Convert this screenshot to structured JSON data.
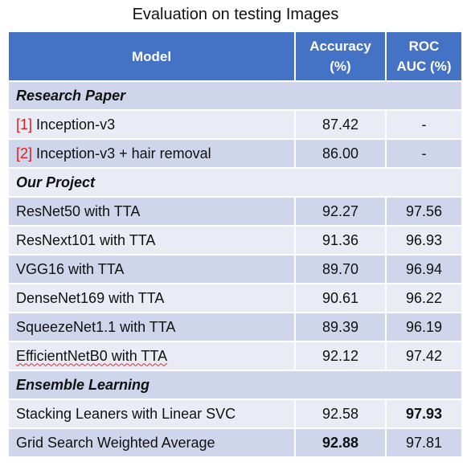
{
  "title": "Evaluation on testing Images",
  "headers": {
    "model": "Model",
    "accuracy_line1": "Accuracy",
    "accuracy_line2": "(%)",
    "roc_line1": "ROC",
    "roc_line2": "AUC (%)"
  },
  "sections": {
    "research": "Research Paper",
    "project": "Our Project",
    "ensemble": "Ensemble Learning"
  },
  "paper_rows": [
    {
      "ref": "[1]",
      "model": " Inception-v3",
      "accuracy": "87.42",
      "roc": "-"
    },
    {
      "ref": "[2]",
      "model": " Inception-v3 + hair removal",
      "accuracy": "86.00",
      "roc": "-"
    }
  ],
  "project_rows": [
    {
      "model": "ResNet50 with TTA",
      "accuracy": "92.27",
      "roc": "97.56"
    },
    {
      "model": "ResNext101 with TTA",
      "accuracy": "91.36",
      "roc": "96.93"
    },
    {
      "model": "VGG16 with TTA",
      "accuracy": "89.70",
      "roc": "96.94"
    },
    {
      "model": "DenseNet169 with TTA",
      "accuracy": "90.61",
      "roc": "96.22"
    },
    {
      "model": "SqueezeNet1.1 with TTA",
      "accuracy": "89.39",
      "roc": "96.19"
    },
    {
      "model": "EfficientNetB0 with TTA",
      "accuracy": "92.12",
      "roc": "97.42"
    }
  ],
  "ensemble_rows": [
    {
      "model": "Stacking Leaners with Linear SVC",
      "accuracy": "92.58",
      "roc": "97.93"
    },
    {
      "model": "Grid Search Weighted Average",
      "accuracy": "92.88",
      "roc": "97.81"
    }
  ],
  "colors": {
    "header_bg": "#4472c4",
    "row_dark": "#cfd5ea",
    "row_light": "#e9ebf5",
    "reference_text": "#e01b1b"
  }
}
